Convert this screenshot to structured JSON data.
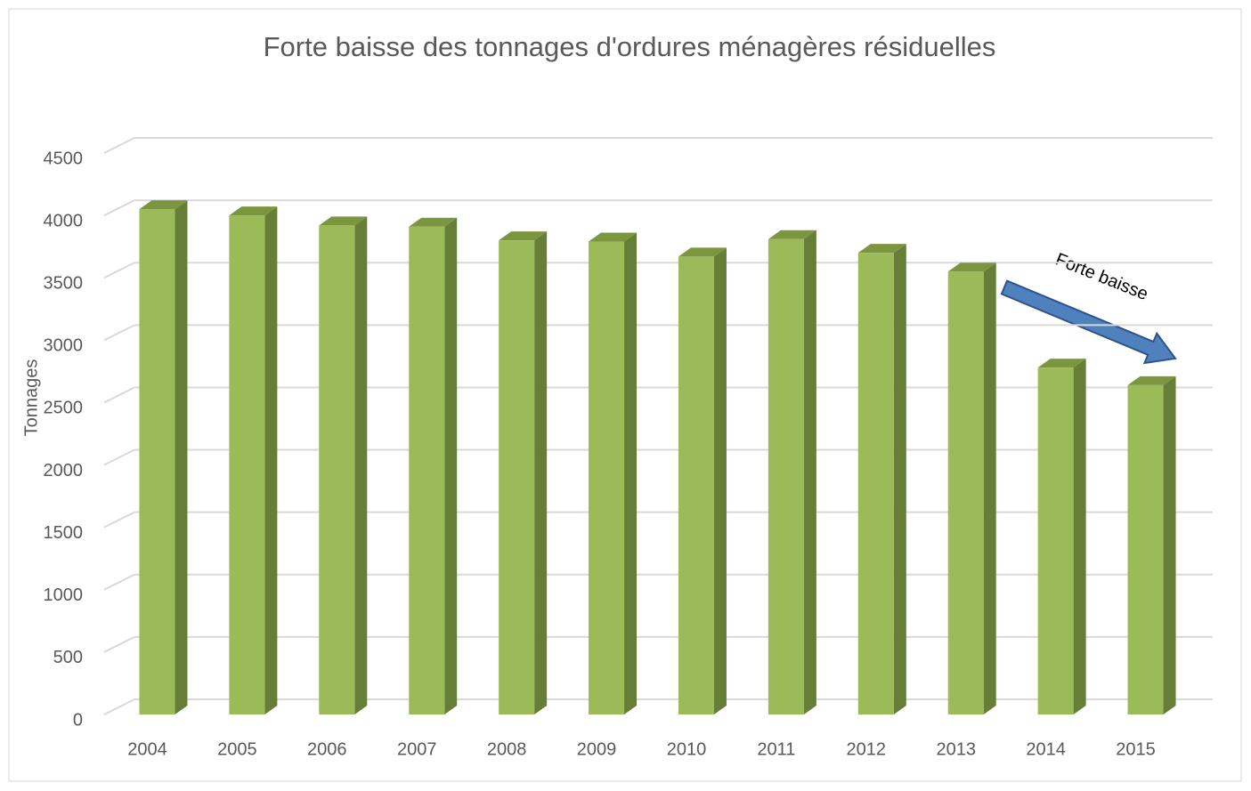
{
  "chart_data": {
    "type": "bar3d",
    "title": "Forte baisse des tonnages d'ordures ménagères résiduelles",
    "y_label": "Tonnages",
    "annotation": "Forte baisse",
    "categories": [
      "2004",
      "2005",
      "2006",
      "2007",
      "2008",
      "2009",
      "2010",
      "2011",
      "2012",
      "2013",
      "2014",
      "2015"
    ],
    "values": [
      4050,
      4000,
      3920,
      3910,
      3800,
      3790,
      3670,
      3810,
      3700,
      3550,
      2780,
      2640
    ],
    "color": "#9bbb59",
    "ylim": [
      0,
      4500
    ],
    "yticks": [
      0,
      500,
      1000,
      1500,
      2000,
      2500,
      3000,
      3500,
      4000,
      4500
    ],
    "grid": true
  }
}
